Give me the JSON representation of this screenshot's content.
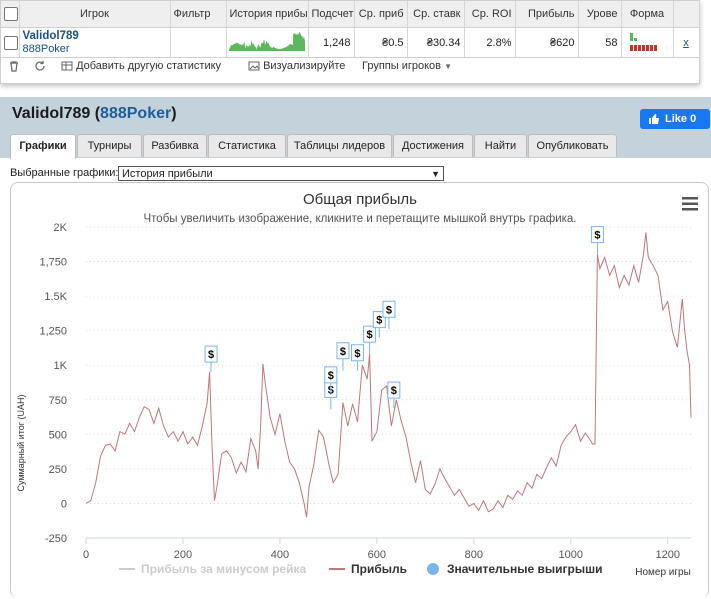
{
  "table": {
    "headers": [
      "Игрок",
      "Фильтр",
      "История прибы",
      "Подсчет",
      "Ср. приб",
      "Ср. ставк",
      "Ср. ROI",
      "Прибыль",
      "Урове",
      "Форма"
    ],
    "row": {
      "player": "Validol789",
      "site": "888Poker",
      "count": "1,248",
      "avg_profit": "₴0.5",
      "avg_stake": "₴30.34",
      "avg_roi": "2.8%",
      "profit": "₴620",
      "level": "58",
      "remove": "x"
    },
    "sparkline_color": "#5cb85c",
    "form_colors": {
      "good": "#5cb85c",
      "bad": "#c9302c"
    }
  },
  "toolbar": {
    "add_stats": "Добавить другую статистику",
    "visualize": "Визуализируйте",
    "groups": "Группы игроков"
  },
  "header": {
    "player": "Validol789",
    "site": "888Poker",
    "fb_like": "Like 0"
  },
  "tabs": [
    "Графики",
    "Турниры",
    "Разбивка",
    "Статистика",
    "Таблицы лидеров",
    "Достижения",
    "Найти",
    "Опубликовать"
  ],
  "chart_select": {
    "label": "Выбранные графики:",
    "value": "История прибыли"
  },
  "chart_data": {
    "type": "line",
    "title": "Общая прибыль",
    "subtitle": "Чтобы увеличить изображение, кликните и перетащите мышкой внутрь графика.",
    "ylabel": "Суммарный итог (UAH)",
    "xlabel": "Номер игры",
    "ylim": [
      -250,
      2000
    ],
    "xlim": [
      0,
      1248
    ],
    "yticks": [
      -250,
      0,
      250,
      500,
      750,
      1000,
      1250,
      1500,
      1750,
      2000
    ],
    "ytick_labels": [
      "-250",
      "0",
      "250",
      "500",
      "750",
      "1K",
      "1,250",
      "1.5K",
      "1,750",
      "2K"
    ],
    "xticks": [
      0,
      200,
      400,
      600,
      800,
      1000,
      1200
    ],
    "series": [
      {
        "name": "Прибыль за минусом рейка",
        "color": "#cccccc",
        "visible": false
      },
      {
        "name": "Прибыль",
        "color": "#c0777a",
        "visible": true,
        "points": [
          [
            0,
            0
          ],
          [
            10,
            20
          ],
          [
            20,
            150
          ],
          [
            30,
            340
          ],
          [
            40,
            420
          ],
          [
            50,
            430
          ],
          [
            60,
            380
          ],
          [
            70,
            520
          ],
          [
            80,
            500
          ],
          [
            90,
            580
          ],
          [
            100,
            520
          ],
          [
            110,
            620
          ],
          [
            120,
            700
          ],
          [
            130,
            680
          ],
          [
            140,
            580
          ],
          [
            150,
            690
          ],
          [
            160,
            560
          ],
          [
            170,
            480
          ],
          [
            180,
            520
          ],
          [
            190,
            450
          ],
          [
            200,
            520
          ],
          [
            210,
            430
          ],
          [
            220,
            480
          ],
          [
            230,
            420
          ],
          [
            240,
            560
          ],
          [
            250,
            730
          ],
          [
            255,
            950
          ],
          [
            260,
            420
          ],
          [
            265,
            20
          ],
          [
            270,
            120
          ],
          [
            280,
            360
          ],
          [
            290,
            380
          ],
          [
            300,
            330
          ],
          [
            310,
            220
          ],
          [
            320,
            300
          ],
          [
            330,
            230
          ],
          [
            340,
            470
          ],
          [
            350,
            380
          ],
          [
            355,
            250
          ],
          [
            360,
            540
          ],
          [
            365,
            1010
          ],
          [
            370,
            860
          ],
          [
            380,
            620
          ],
          [
            390,
            500
          ],
          [
            400,
            650
          ],
          [
            410,
            450
          ],
          [
            420,
            300
          ],
          [
            430,
            250
          ],
          [
            440,
            150
          ],
          [
            450,
            0
          ],
          [
            455,
            -100
          ],
          [
            460,
            120
          ],
          [
            470,
            280
          ],
          [
            480,
            530
          ],
          [
            490,
            480
          ],
          [
            500,
            300
          ],
          [
            510,
            150
          ],
          [
            520,
            210
          ],
          [
            530,
            730
          ],
          [
            540,
            560
          ],
          [
            550,
            720
          ],
          [
            560,
            590
          ],
          [
            570,
            1000
          ],
          [
            580,
            900
          ],
          [
            585,
            1080
          ],
          [
            590,
            450
          ],
          [
            600,
            520
          ],
          [
            610,
            820
          ],
          [
            620,
            850
          ],
          [
            630,
            560
          ],
          [
            640,
            750
          ],
          [
            650,
            600
          ],
          [
            660,
            480
          ],
          [
            670,
            300
          ],
          [
            680,
            150
          ],
          [
            690,
            310
          ],
          [
            700,
            100
          ],
          [
            710,
            70
          ],
          [
            720,
            140
          ],
          [
            730,
            250
          ],
          [
            740,
            180
          ],
          [
            750,
            120
          ],
          [
            760,
            60
          ],
          [
            770,
            100
          ],
          [
            780,
            40
          ],
          [
            790,
            -20
          ],
          [
            800,
            0
          ],
          [
            810,
            -50
          ],
          [
            820,
            20
          ],
          [
            830,
            -60
          ],
          [
            840,
            -40
          ],
          [
            850,
            20
          ],
          [
            860,
            -30
          ],
          [
            870,
            60
          ],
          [
            880,
            30
          ],
          [
            890,
            90
          ],
          [
            900,
            60
          ],
          [
            910,
            150
          ],
          [
            920,
            110
          ],
          [
            930,
            210
          ],
          [
            940,
            180
          ],
          [
            950,
            260
          ],
          [
            960,
            330
          ],
          [
            970,
            270
          ],
          [
            980,
            420
          ],
          [
            990,
            480
          ],
          [
            1000,
            520
          ],
          [
            1010,
            570
          ],
          [
            1020,
            450
          ],
          [
            1030,
            510
          ],
          [
            1040,
            460
          ],
          [
            1045,
            430
          ],
          [
            1050,
            430
          ],
          [
            1055,
            1800
          ],
          [
            1060,
            1700
          ],
          [
            1070,
            1780
          ],
          [
            1080,
            1650
          ],
          [
            1090,
            1720
          ],
          [
            1100,
            1560
          ],
          [
            1110,
            1650
          ],
          [
            1120,
            1580
          ],
          [
            1130,
            1720
          ],
          [
            1140,
            1600
          ],
          [
            1150,
            1800
          ],
          [
            1155,
            1960
          ],
          [
            1160,
            1780
          ],
          [
            1170,
            1720
          ],
          [
            1180,
            1650
          ],
          [
            1190,
            1400
          ],
          [
            1200,
            1460
          ],
          [
            1210,
            1240
          ],
          [
            1220,
            1130
          ],
          [
            1230,
            1480
          ],
          [
            1235,
            1250
          ],
          [
            1240,
            1100
          ],
          [
            1245,
            1000
          ],
          [
            1248,
            620
          ]
        ]
      },
      {
        "name": "Значительные выигрыши",
        "color": "#7cb5ec",
        "visible": true
      }
    ],
    "big_wins": [
      {
        "x": 258,
        "y": 950,
        "label": "$"
      },
      {
        "x": 505,
        "y": 680,
        "label": "$"
      },
      {
        "x": 505,
        "y": 800,
        "label": "$"
      },
      {
        "x": 530,
        "y": 960,
        "label": "$"
      },
      {
        "x": 560,
        "y": 960,
        "label": "$"
      },
      {
        "x": 585,
        "y": 1080,
        "label": "$"
      },
      {
        "x": 605,
        "y": 1200,
        "label": "$"
      },
      {
        "x": 625,
        "y": 1260,
        "label": "$"
      },
      {
        "x": 635,
        "y": 690,
        "label": "$"
      },
      {
        "x": 1055,
        "y": 1800,
        "label": "$"
      }
    ],
    "grid": true,
    "legend_position": "bottom-center"
  }
}
